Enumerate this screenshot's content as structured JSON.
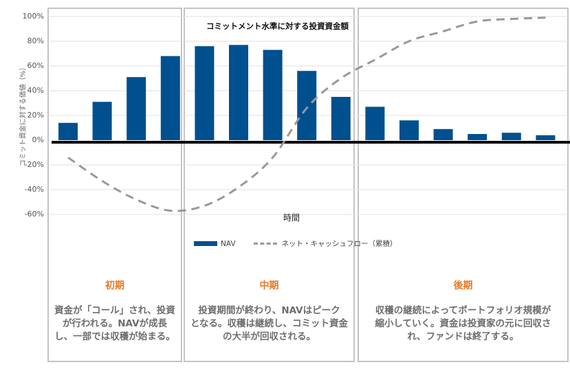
{
  "chart_data": {
    "type": "bar",
    "title": "コミットメント水準に対する投資資金額",
    "xlabel": "時間",
    "ylabel": "コミット資金に対する価値（%）",
    "ylim": [
      -60,
      100
    ],
    "yticks": [
      "100%",
      "80%",
      "60%",
      "40%",
      "20%",
      "0%",
      "-20%",
      "-40%",
      "-60%"
    ],
    "ytick_values": [
      100,
      80,
      60,
      40,
      20,
      0,
      -20,
      -40,
      -60
    ],
    "grid": true,
    "legend_position": "bottom",
    "series": [
      {
        "name": "NAV",
        "type": "bar",
        "color": "#00508f",
        "values": [
          14,
          31,
          51,
          68,
          76,
          77,
          73,
          56,
          35,
          27,
          16,
          9,
          5,
          6,
          4
        ]
      },
      {
        "name": "ネット・キャッシュフロー（累積）",
        "type": "line",
        "style": "dashed",
        "color": "#999999",
        "values": [
          -14,
          -33,
          -48,
          -57,
          -53,
          -38,
          -14,
          26,
          50,
          65,
          80,
          88,
          96,
          98,
          99
        ]
      }
    ]
  },
  "phases": [
    {
      "title": "初期",
      "description": "資金が「コール」され、投資\nが行われる。NAVが成長\nし、一部では収穫が始まる。"
    },
    {
      "title": "中期",
      "description": "投資期間が終わり、NAVはピーク\nとなる。収穫は継続し、コミット資金\nの大半が回収される。"
    },
    {
      "title": "後期",
      "description": "収穫の継続によってポートフォリオ規模が\n縮小していく。資金は投資家の元に回収さ\nれ、ファンドは終了する。"
    }
  ],
  "colors": {
    "accent": "#e87722",
    "bar": "#00508f",
    "line": "#999999"
  }
}
